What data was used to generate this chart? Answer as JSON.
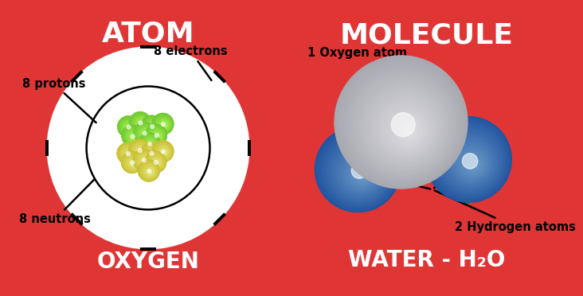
{
  "left_bg": "#e03535",
  "right_bg": "#4d9fa2",
  "left_title": "ATOM",
  "right_title": "MOLECULE",
  "left_subtitle": "OXYGEN",
  "right_subtitle": "WATER - H₂O",
  "atom_label_protons": "8 protons",
  "atom_label_electrons": "8 electrons",
  "atom_label_neutrons": "8 neutrons",
  "molecule_label_oxygen": "1 Oxygen atom",
  "molecule_label_hydrogen": "2 Hydrogen atoms",
  "proton_color": "#6dc830",
  "neutron_color": "#c8c030",
  "oxygen_sphere_base": "#a8a8b0",
  "oxygen_sphere_highlight": "#e8e8ec",
  "hydrogen_sphere_base": "#2255a0",
  "hydrogen_sphere_highlight": "#7aa8d0",
  "title_fontsize": 26,
  "subtitle_fontsize": 20,
  "label_fontsize": 10.5
}
